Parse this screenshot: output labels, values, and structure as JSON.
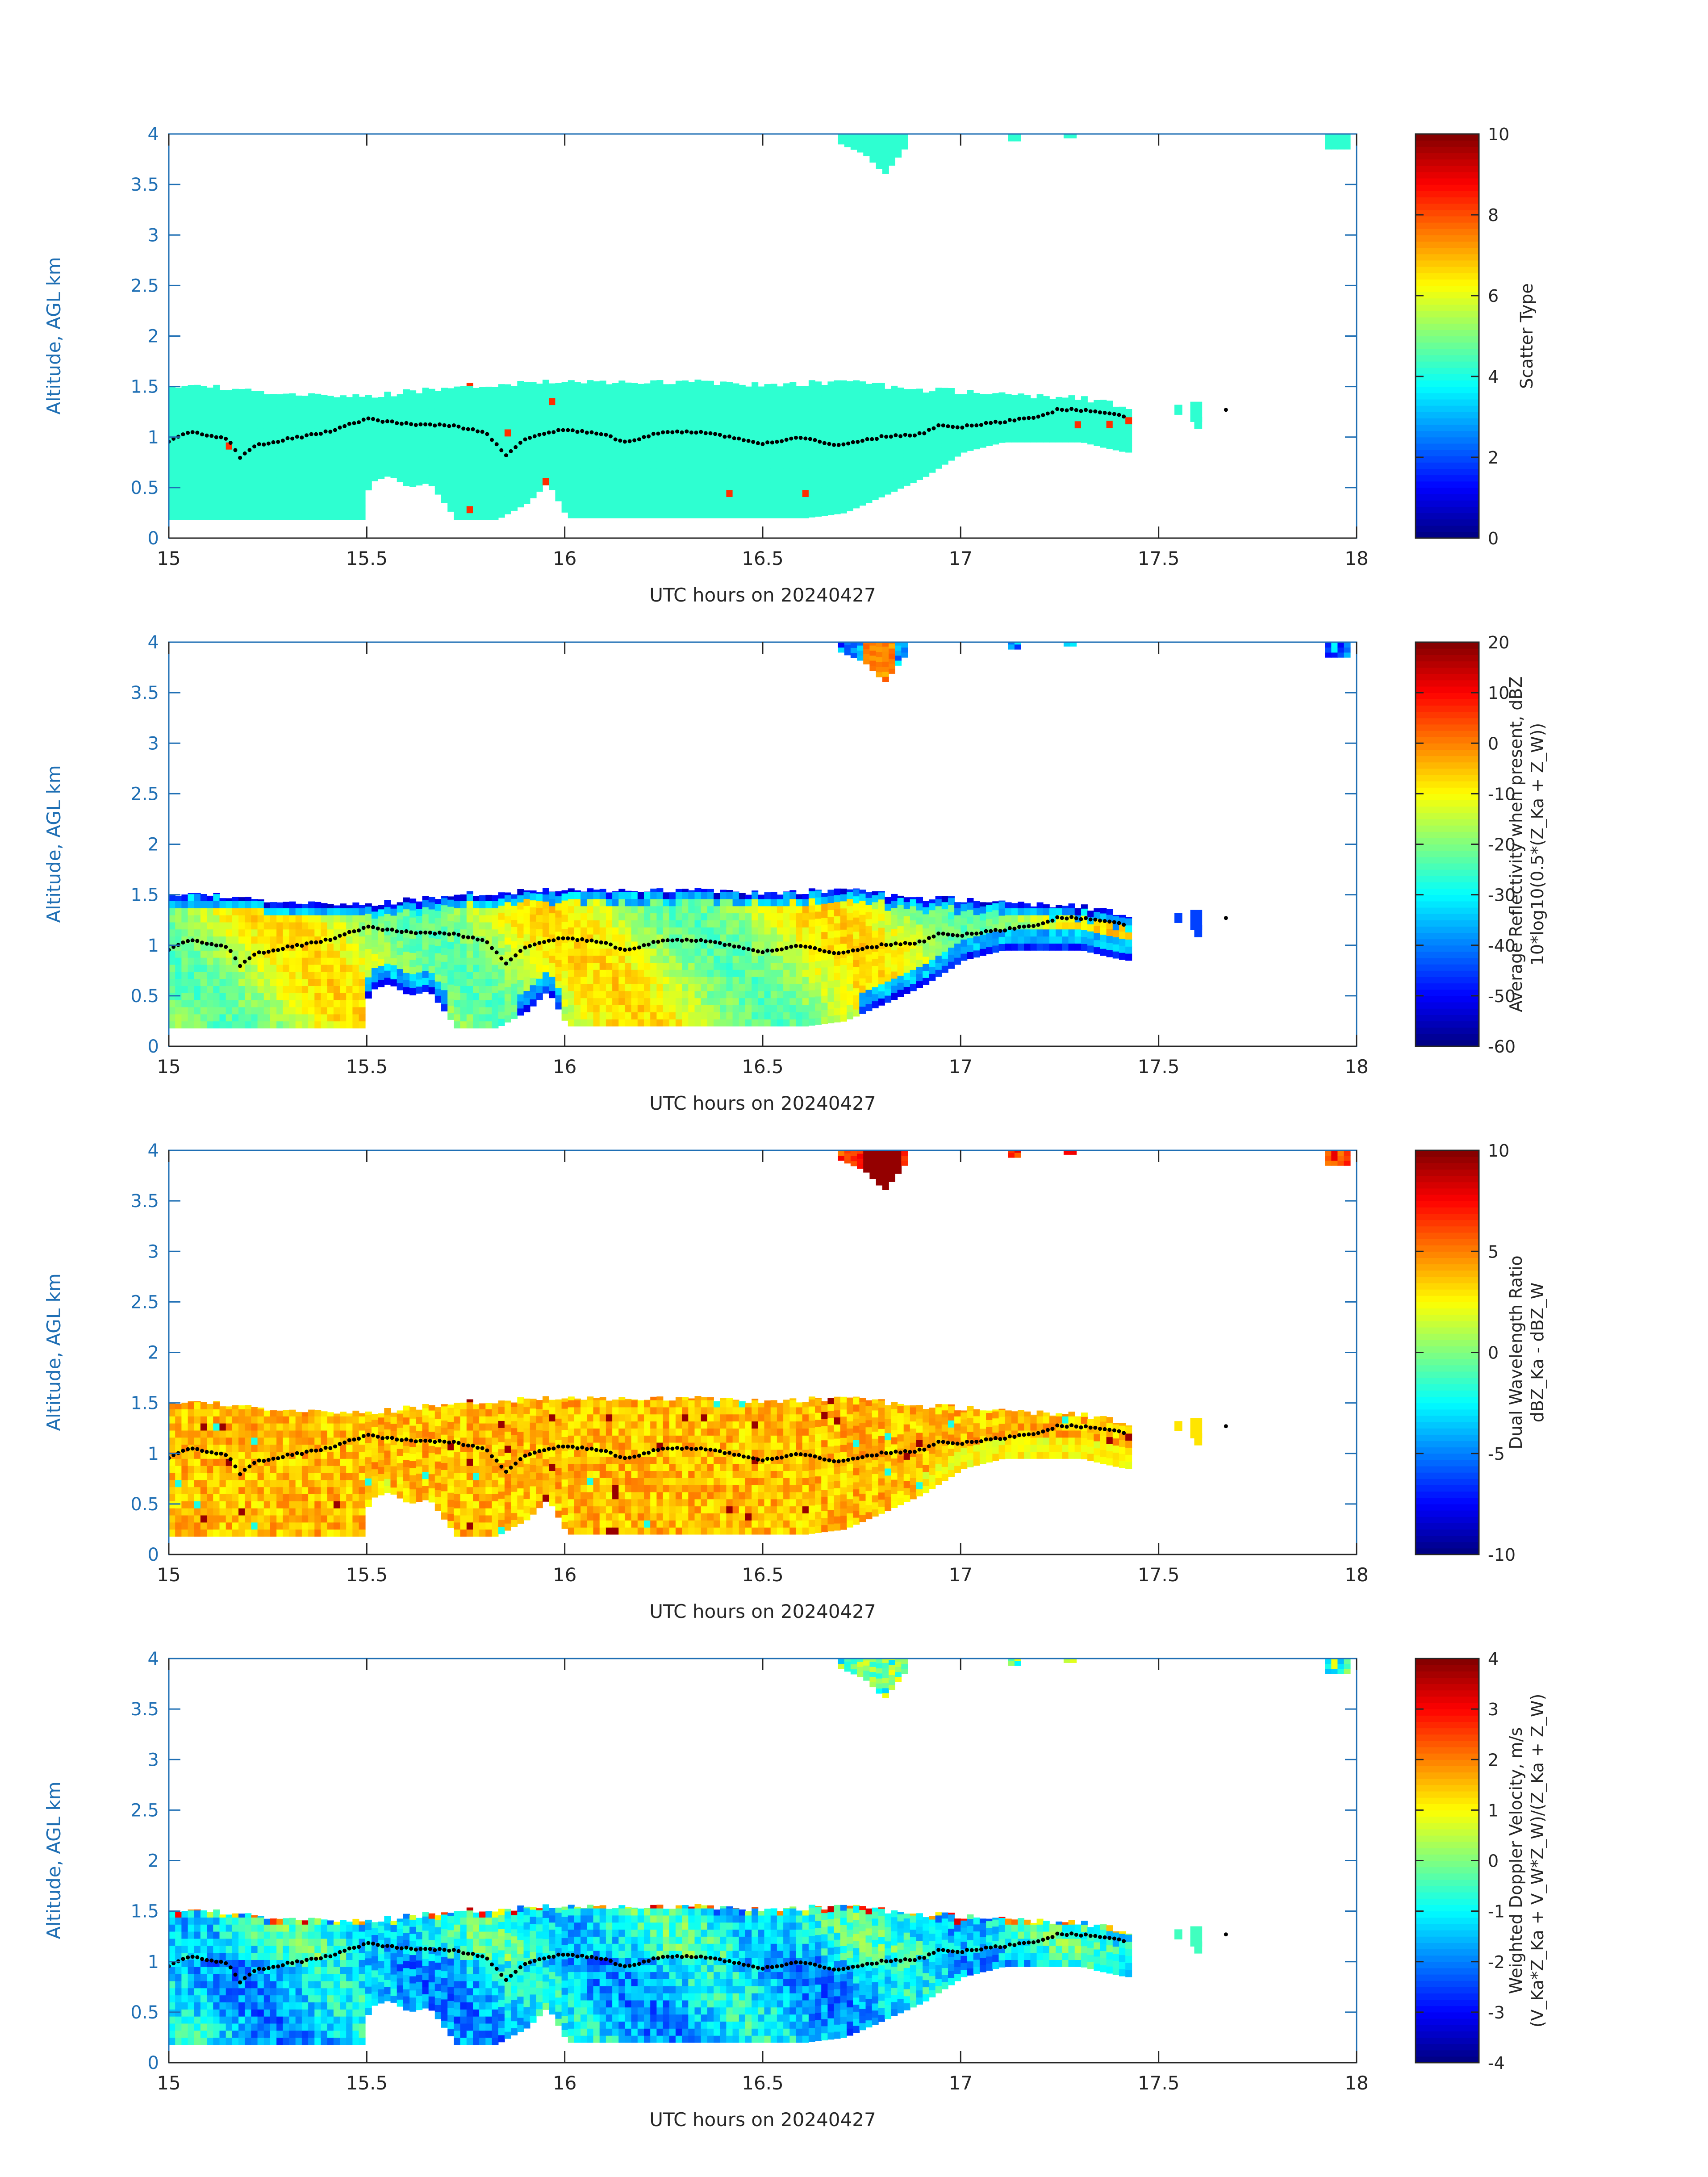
{
  "figure": {
    "background": "#ffffff",
    "axis_color": "#1f6fb4",
    "text_color": "#262626",
    "dot_color": "#000000"
  },
  "chart_data": [
    {
      "type": "heatmap",
      "xlabel": "UTC hours on 20240427",
      "ylabel": "Altitude, AGL km",
      "xlim": [
        15,
        18
      ],
      "ylim": [
        0,
        4
      ],
      "xticks": [
        "15",
        "15.5",
        "16",
        "16.5",
        "17",
        "17.5",
        "18"
      ],
      "yticks": [
        "0",
        "0.5",
        "1",
        "1.5",
        "2",
        "2.5",
        "3",
        "3.5",
        "4"
      ],
      "colorbar": {
        "label_lines": [
          "Scatter Type"
        ],
        "lim": [
          0,
          10
        ],
        "ticks": [
          "0",
          "2",
          "4",
          "6",
          "8",
          "10"
        ],
        "colormap": "jet"
      },
      "field": "scatter_type",
      "dominant_value": 4.2,
      "outlier_value": 8.3
    },
    {
      "type": "heatmap",
      "xlabel": "UTC hours on 20240427",
      "ylabel": "Altitude, AGL km",
      "xlim": [
        15,
        18
      ],
      "ylim": [
        0,
        4
      ],
      "xticks": [
        "15",
        "15.5",
        "16",
        "16.5",
        "17",
        "17.5",
        "18"
      ],
      "yticks": [
        "0",
        "0.5",
        "1",
        "1.5",
        "2",
        "2.5",
        "3",
        "3.5",
        "4"
      ],
      "colorbar": {
        "label_lines": [
          "Average Reflectivity when present, dBZ",
          "10*log10(0.5*(Z_Ka + Z_W))"
        ],
        "lim": [
          -60,
          20
        ],
        "ticks": [
          "-60",
          "-50",
          "-40",
          "-30",
          "-20",
          "-10",
          "0",
          "10",
          "20"
        ],
        "colormap": "jet"
      },
      "field": "reflectivity"
    },
    {
      "type": "heatmap",
      "xlabel": "UTC hours on 20240427",
      "ylabel": "Altitude, AGL km",
      "xlim": [
        15,
        18
      ],
      "ylim": [
        0,
        4
      ],
      "xticks": [
        "15",
        "15.5",
        "16",
        "16.5",
        "17",
        "17.5",
        "18"
      ],
      "yticks": [
        "0",
        "0.5",
        "1",
        "1.5",
        "2",
        "2.5",
        "3",
        "3.5",
        "4"
      ],
      "colorbar": {
        "label_lines": [
          "Dual Wavelength Ratio",
          "dBZ_Ka - dBZ_W"
        ],
        "lim": [
          -10,
          10
        ],
        "ticks": [
          "-10",
          "-5",
          "0",
          "5",
          "10"
        ],
        "colormap": "jet"
      },
      "field": "dwr"
    },
    {
      "type": "heatmap",
      "xlabel": "UTC hours on 20240427",
      "ylabel": "Altitude, AGL km",
      "xlim": [
        15,
        18
      ],
      "ylim": [
        0,
        4
      ],
      "xticks": [
        "15",
        "15.5",
        "16",
        "16.5",
        "17",
        "17.5",
        "18"
      ],
      "yticks": [
        "0",
        "0.5",
        "1",
        "1.5",
        "2",
        "2.5",
        "3",
        "3.5",
        "4"
      ],
      "colorbar": {
        "label_lines": [
          "Weighted Doppler Velocity, m/s",
          "(V_Ka*Z_Ka + V_W*Z_W)/(Z_Ka + Z_W)"
        ],
        "lim": [
          -4,
          4
        ],
        "ticks": [
          "-4",
          "-3",
          "-2",
          "-1",
          "0",
          "1",
          "2",
          "3",
          "4"
        ],
        "colormap": "jet"
      },
      "field": "velocity"
    }
  ],
  "cloud_data": {
    "description_units": "x in UTC hours, altitudes in km AGL",
    "main_layer": {
      "top_profile": [
        [
          15.0,
          1.5
        ],
        [
          15.1,
          1.5
        ],
        [
          15.25,
          1.45
        ],
        [
          15.5,
          1.4
        ],
        [
          15.7,
          1.5
        ],
        [
          16.0,
          1.55
        ],
        [
          16.3,
          1.55
        ],
        [
          16.5,
          1.52
        ],
        [
          16.7,
          1.55
        ],
        [
          16.9,
          1.47
        ],
        [
          17.0,
          1.45
        ],
        [
          17.1,
          1.42
        ],
        [
          17.3,
          1.38
        ],
        [
          17.35,
          1.35
        ],
        [
          17.41,
          1.3
        ]
      ],
      "bottom_profile": [
        [
          15.0,
          0.18
        ],
        [
          15.48,
          0.18
        ],
        [
          15.5,
          0.55
        ],
        [
          15.55,
          0.62
        ],
        [
          15.6,
          0.5
        ],
        [
          15.65,
          0.55
        ],
        [
          15.72,
          0.18
        ],
        [
          15.82,
          0.18
        ],
        [
          15.9,
          0.35
        ],
        [
          15.95,
          0.55
        ],
        [
          16.0,
          0.2
        ],
        [
          16.6,
          0.2
        ],
        [
          16.7,
          0.25
        ],
        [
          16.8,
          0.42
        ],
        [
          16.9,
          0.6
        ],
        [
          17.0,
          0.85
        ],
        [
          17.1,
          0.95
        ],
        [
          17.2,
          0.95
        ],
        [
          17.3,
          0.95
        ],
        [
          17.35,
          0.9
        ],
        [
          17.41,
          0.85
        ]
      ],
      "x_range": [
        15.0,
        17.42
      ]
    },
    "upper_patches": [
      {
        "x": [
          16.69,
          16.85
        ],
        "top": 4.0,
        "bottom": [
          [
            16.69,
            3.9
          ],
          [
            16.75,
            3.8
          ],
          [
            16.8,
            3.6
          ],
          [
            16.85,
            3.85
          ]
        ]
      },
      {
        "x": [
          17.12,
          17.14
        ],
        "top": 4.0,
        "bottom": [
          [
            17.12,
            3.93
          ],
          [
            17.14,
            3.93
          ]
        ]
      },
      {
        "x": [
          17.26,
          17.29
        ],
        "top": 4.0,
        "bottom": [
          [
            17.26,
            3.96
          ],
          [
            17.29,
            3.96
          ]
        ]
      },
      {
        "x": [
          17.92,
          17.97
        ],
        "top": 4.0,
        "bottom": [
          [
            17.92,
            3.85
          ],
          [
            17.97,
            3.85
          ]
        ]
      }
    ],
    "small_patches": [
      {
        "x": [
          17.54,
          17.56
        ],
        "y": [
          1.22,
          1.32
        ]
      },
      {
        "x": [
          17.58,
          17.61
        ],
        "y": [
          1.15,
          1.35
        ]
      },
      {
        "x": [
          17.59,
          17.61
        ],
        "y": [
          1.08,
          1.2
        ]
      }
    ],
    "dotted_line": [
      [
        15.0,
        0.96
      ],
      [
        15.05,
        1.05
      ],
      [
        15.1,
        1.02
      ],
      [
        15.15,
        0.98
      ],
      [
        15.18,
        0.8
      ],
      [
        15.22,
        0.92
      ],
      [
        15.3,
        0.98
      ],
      [
        15.4,
        1.05
      ],
      [
        15.5,
        1.18
      ],
      [
        15.6,
        1.13
      ],
      [
        15.7,
        1.12
      ],
      [
        15.8,
        1.05
      ],
      [
        15.85,
        0.82
      ],
      [
        15.9,
        0.98
      ],
      [
        16.0,
        1.08
      ],
      [
        16.1,
        1.02
      ],
      [
        16.15,
        0.95
      ],
      [
        16.25,
        1.05
      ],
      [
        16.35,
        1.05
      ],
      [
        16.45,
        0.97
      ],
      [
        16.5,
        0.94
      ],
      [
        16.6,
        1.0
      ],
      [
        16.65,
        0.95
      ],
      [
        16.7,
        0.92
      ],
      [
        16.8,
        1.0
      ],
      [
        16.9,
        1.03
      ],
      [
        16.95,
        1.12
      ],
      [
        17.0,
        1.1
      ],
      [
        17.1,
        1.15
      ],
      [
        17.2,
        1.2
      ],
      [
        17.25,
        1.28
      ],
      [
        17.35,
        1.25
      ],
      [
        17.42,
        1.2
      ]
    ],
    "isolated_dot": [
      17.67,
      1.27
    ]
  }
}
